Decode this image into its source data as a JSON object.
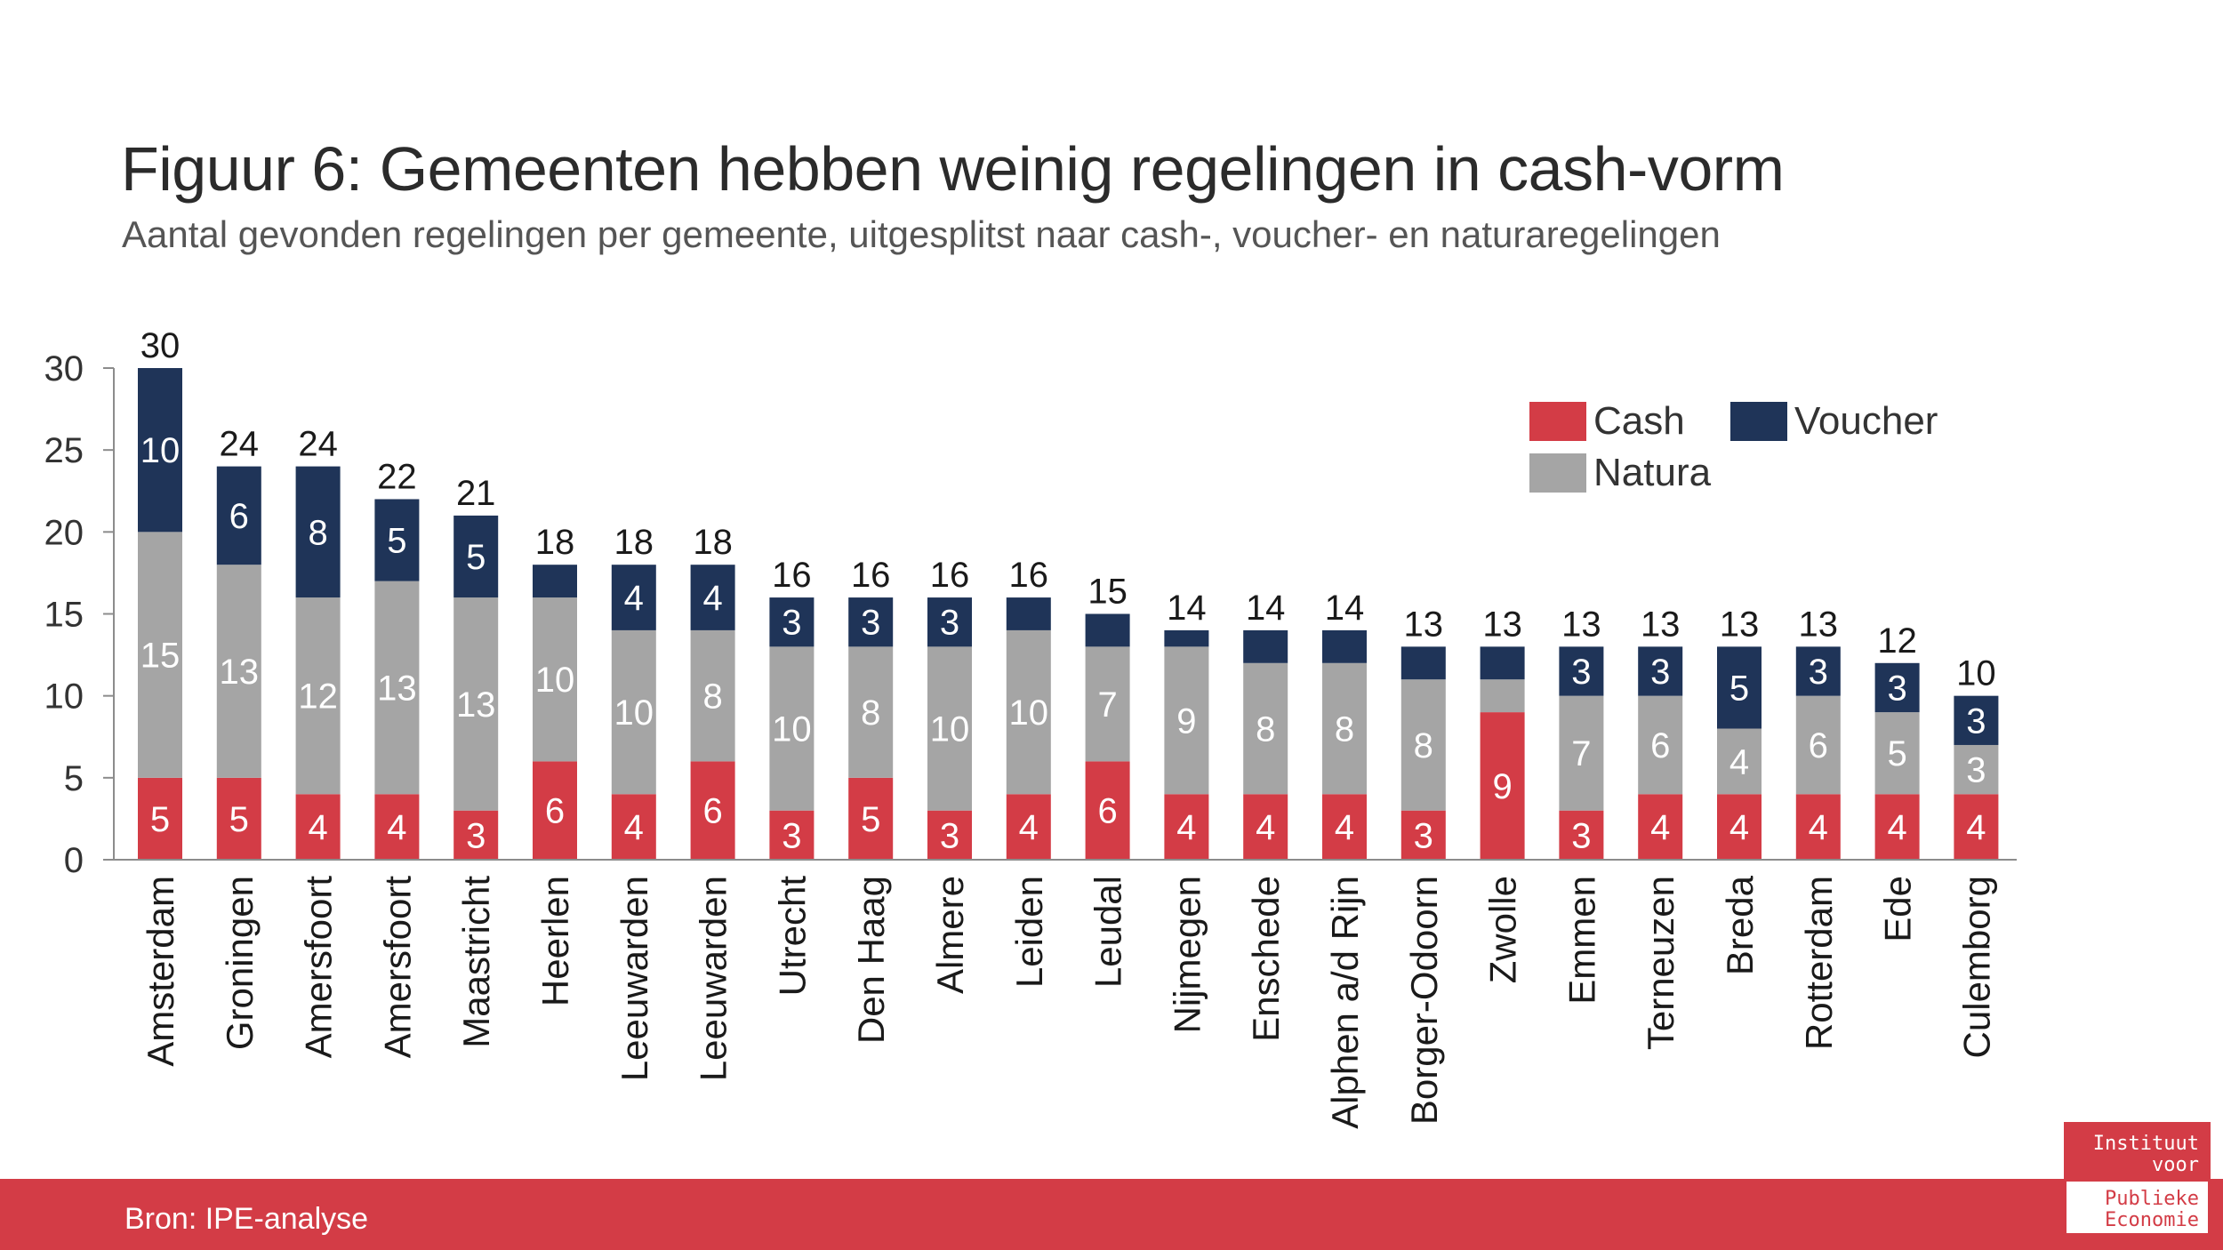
{
  "title": "Figuur 6: Gemeenten hebben weinig regelingen in cash-vorm",
  "subtitle": "Aantal gevonden regelingen per gemeente, uitgesplitst naar cash-, voucher- en naturaregelingen",
  "source": "Bron: IPE-analyse",
  "logo": {
    "line1": "Instituut",
    "line2": "voor",
    "line3": "Publieke",
    "line4": "Economie"
  },
  "colors": {
    "cash": "#d33c46",
    "natura": "#a5a5a5",
    "voucher": "#1f3458",
    "footer": "#d33c46"
  },
  "chart_data": {
    "type": "bar",
    "stacked": true,
    "categories": [
      "Amsterdam",
      "Groningen",
      "Amersfoort",
      "Amersfoort",
      "Maastricht",
      "Heerlen",
      "Leeuwarden",
      "Leeuwarden",
      "Utrecht",
      "Den Haag",
      "Almere",
      "Leiden",
      "Leudal",
      "Nijmegen",
      "Enschede",
      "Alphen a/d Rijn",
      "Borger-Odoorn",
      "Zwolle",
      "Emmen",
      "Terneuzen",
      "Breda",
      "Rotterdam",
      "Ede",
      "Culemborg"
    ],
    "series": [
      {
        "name": "Cash",
        "values": [
          5,
          5,
          4,
          4,
          3,
          6,
          4,
          6,
          3,
          5,
          3,
          4,
          6,
          4,
          4,
          4,
          3,
          9,
          3,
          4,
          4,
          4,
          4,
          4
        ]
      },
      {
        "name": "Natura",
        "values": [
          15,
          13,
          12,
          13,
          13,
          10,
          10,
          8,
          10,
          8,
          10,
          10,
          7,
          9,
          8,
          8,
          8,
          2,
          7,
          6,
          4,
          6,
          5,
          3
        ]
      },
      {
        "name": "Voucher",
        "values": [
          10,
          6,
          8,
          5,
          5,
          2,
          4,
          4,
          3,
          3,
          3,
          2,
          2,
          1,
          2,
          2,
          2,
          2,
          3,
          3,
          5,
          3,
          3,
          3
        ]
      }
    ],
    "segment_labels": {
      "Cash": [
        "5",
        "5",
        "4",
        "4",
        "3",
        "6",
        "4",
        "6",
        "3",
        "5",
        "3",
        "4",
        "6",
        "4",
        "4",
        "4",
        "3",
        "9",
        "3",
        "4",
        "4",
        "4",
        "4",
        "4"
      ],
      "Natura": [
        "15",
        "13",
        "12",
        "13",
        "13",
        "10",
        "10",
        "8",
        "10",
        "8",
        "10",
        "10",
        "7",
        "9",
        "8",
        "8",
        "8",
        "",
        "7",
        "6",
        "4",
        "6",
        "5",
        "3"
      ],
      "Voucher": [
        "10",
        "6",
        "8",
        "5",
        "5",
        "",
        "4",
        "4",
        "3",
        "3",
        "3",
        "",
        "",
        "",
        "",
        "",
        "",
        "",
        "3",
        "3",
        "5",
        "3",
        "3",
        "3"
      ]
    },
    "totals": [
      "30",
      "24",
      "24",
      "22",
      "21",
      "18",
      "18",
      "18",
      "16",
      "16",
      "16",
      "16",
      "15",
      "14",
      "14",
      "14",
      "13",
      "13",
      "13",
      "13",
      "13",
      "13",
      "12",
      "10"
    ],
    "yticks": [
      "0",
      "5",
      "10",
      "15",
      "20",
      "25",
      "30"
    ],
    "ylim": [
      0,
      30
    ],
    "legend": {
      "position": "top-right",
      "entries": [
        "Cash",
        "Voucher",
        "Natura"
      ]
    },
    "grid": false
  }
}
